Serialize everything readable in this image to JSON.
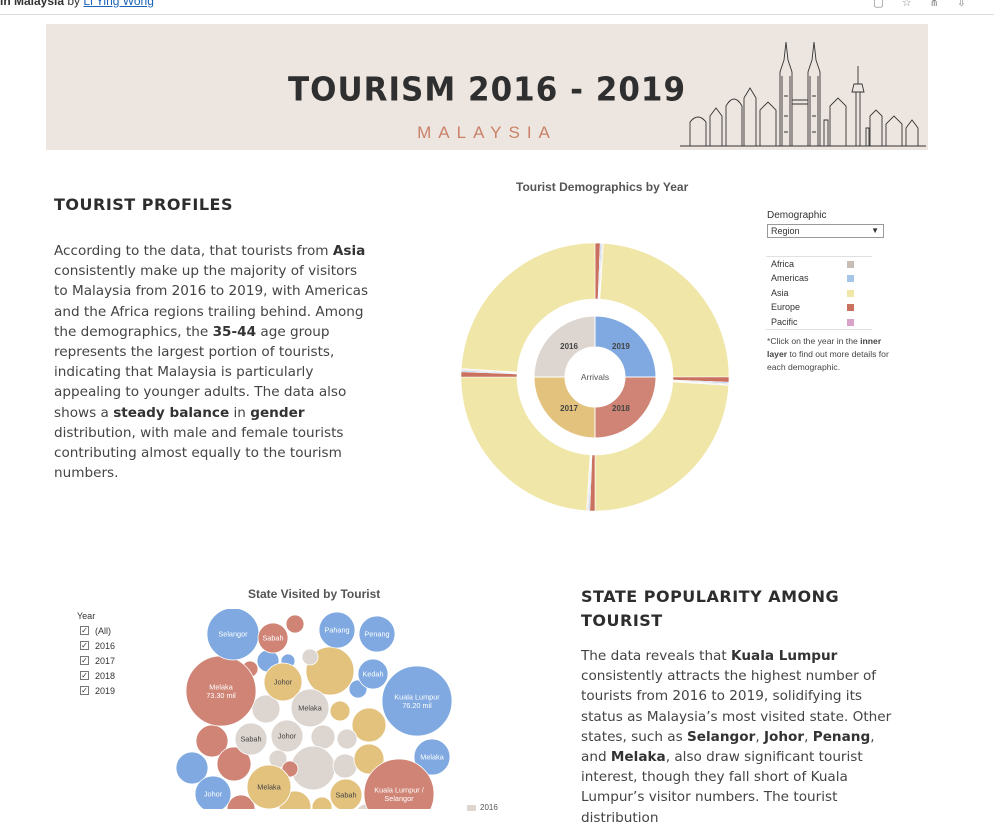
{
  "topbar": {
    "title": "in Malaysia",
    "by": "by",
    "author": "Li Ying Wong"
  },
  "banner": {
    "title": "TOURISM 2016 - 2019",
    "subtitle": "MALAYSIA"
  },
  "tourist_profiles": {
    "heading": "TOURIST PROFILES",
    "text": [
      "According to the data,  that tourists from ",
      "Asia",
      " consistently make up the majority of visitors to Malaysia from 2016 to 2019, with Americas and the Africa regions trailing behind. Among the demographics, the ",
      "35-44",
      " age group represents the largest portion of tourists, indicating that Malaysia is particularly appealing to younger adults. The data also shows a ",
      "steady balance",
      " in ",
      "gender",
      " distribution, with male and female tourists contributing almost equally to the tourism numbers."
    ]
  },
  "demographics": {
    "title": "Tourist Demographics by Year",
    "center_label": "Arrivals",
    "control_label": "Demographic",
    "dropdown_value": "Region",
    "legend": [
      {
        "label": "Africa",
        "color": "#c8beb6"
      },
      {
        "label": "Americas",
        "color": "#a5c6e8"
      },
      {
        "label": "Asia",
        "color": "#f0e6a8"
      },
      {
        "label": "Europe",
        "color": "#c9705e"
      },
      {
        "label": "Pacific",
        "color": "#d9a3c9"
      }
    ],
    "note_prefix": "*Click on the year in the ",
    "note_bold": "inner layer",
    "note_suffix": " to find out more details for each demographic.",
    "colors": {
      "y2016": "#ddd5cf",
      "y2017": "#e3c27e",
      "y2018": "#cf8475",
      "y2019": "#7fa9e0",
      "ring_bg": "#f3f0ea",
      "hole": "#ffffff"
    }
  },
  "chart_data": [
    {
      "type": "pie",
      "title": "Tourist Demographics by Year",
      "inner_ring": {
        "categories": [
          "2019",
          "2018",
          "2017",
          "2016"
        ],
        "values": [
          25,
          25,
          25,
          25
        ]
      },
      "outer_ring": {
        "categories": [
          "Asia",
          "Europe",
          "Americas",
          "Africa",
          "Pacific"
        ],
        "series": [
          {
            "name": "2019",
            "values": [
              0.96,
              0.025,
              0.006,
              0.005,
              0.004
            ]
          },
          {
            "name": "2018",
            "values": [
              0.96,
              0.025,
              0.006,
              0.005,
              0.004
            ]
          },
          {
            "name": "2017",
            "values": [
              0.96,
              0.025,
              0.006,
              0.005,
              0.004
            ]
          },
          {
            "name": "2016",
            "values": [
              0.96,
              0.025,
              0.006,
              0.005,
              0.004
            ]
          }
        ]
      }
    },
    {
      "type": "bubble",
      "title": "State Visited by Tourist",
      "series": [
        {
          "name": "2016",
          "color": "#ddd5cf"
        },
        {
          "name": "2017",
          "color": "#e3c27e"
        },
        {
          "name": "2018",
          "color": "#cf8475"
        },
        {
          "name": "2019",
          "color": "#7fa9e0"
        }
      ],
      "points": [
        {
          "state": "Kuala Lumpur",
          "year": "2019",
          "label": "Kuala Lumpur",
          "value_label": "76.20 mil"
        },
        {
          "state": "Melaka",
          "year": "2018",
          "label": "Melaka",
          "value_label": "73.30 mil"
        },
        {
          "state": "Selangor",
          "year": "2019",
          "label": "Selangor"
        },
        {
          "state": "Sabah",
          "year": "2018",
          "label": "Sabah"
        },
        {
          "state": "Pahang",
          "year": "2019",
          "label": "Pahang"
        },
        {
          "state": "Penang",
          "year": "2019",
          "label": "Penang"
        },
        {
          "state": "Johor",
          "year": "2017",
          "label": "Johor"
        },
        {
          "state": "Kedah",
          "year": "2019",
          "label": "Kedah"
        },
        {
          "state": "Melaka",
          "year": "2016",
          "label": "Melaka"
        },
        {
          "state": "Sabah",
          "year": "2016",
          "label": "Sabah"
        },
        {
          "state": "Johor",
          "year": "2016",
          "label": "Johor"
        },
        {
          "state": "Melaka",
          "year": "2019",
          "label": "Melaka"
        },
        {
          "state": "Johor",
          "year": "2019",
          "label": "Johor"
        },
        {
          "state": "Melaka",
          "year": "2017",
          "label": "Melaka"
        },
        {
          "state": "Sabah",
          "year": "2017",
          "label": "Sabah"
        },
        {
          "state": "Kuala Lumpur / Selangor",
          "year": "2018",
          "label": "Kuala Lumpur / Selangor"
        }
      ]
    }
  ],
  "state_chart": {
    "title": "State Visited by Tourist",
    "filter_label": "Year",
    "filter_items": [
      "(All)",
      "2016",
      "2017",
      "2018",
      "2019"
    ],
    "partial_legend": "2016"
  },
  "state_popularity": {
    "heading_line1": "STATE POPULARITY AMONG",
    "heading_line2": "TOURIST",
    "text": [
      "The data reveals that ",
      "Kuala Lumpur",
      " consistently attracts the highest number of tourists from 2016 to 2019, solidifying its status as Malaysia’s most visited state. Other states, such as ",
      "Selangor",
      ", ",
      "Johor",
      ", ",
      "Penang",
      ", and ",
      "Melaka",
      ", also draw significant tourist interest, though they fall short of Kuala Lumpur’s visitor numbers. The tourist distribution"
    ]
  }
}
